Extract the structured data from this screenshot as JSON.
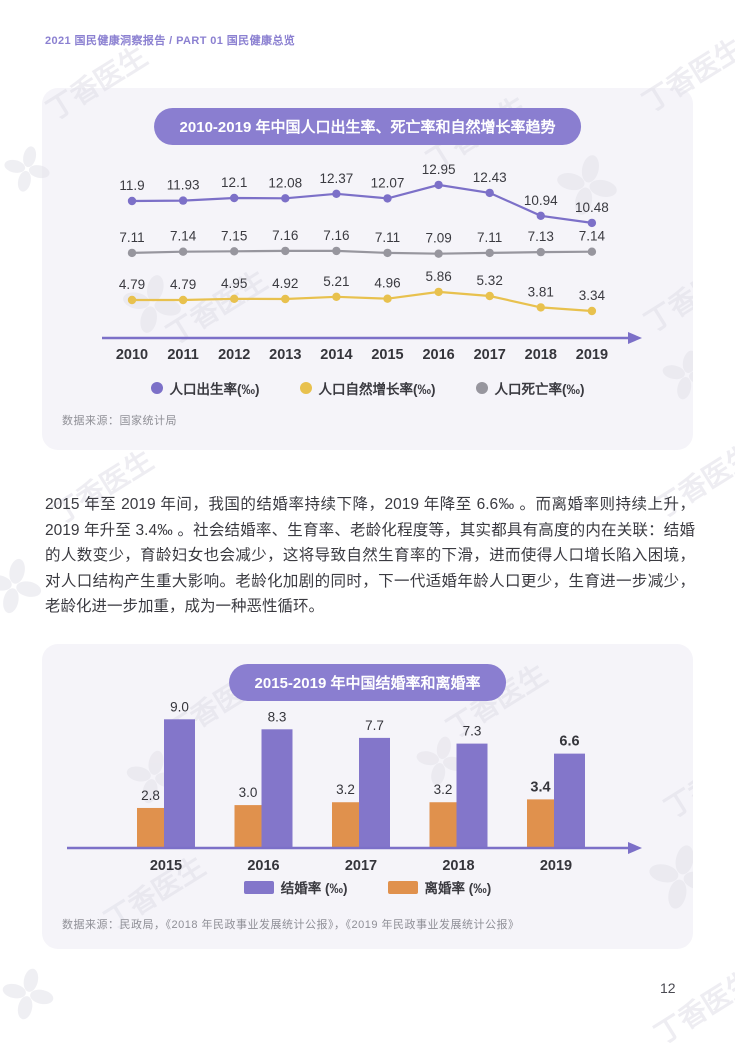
{
  "page": {
    "header": "2021 国民健康洞察报告 / PART 01 国民健康总览",
    "page_number": "12",
    "watermark_text": "丁香医生"
  },
  "colors": {
    "accent_purple": "#8A7ED0",
    "line_purple": "#7C70C8",
    "line_yellow": "#E8C14E",
    "line_gray": "#97969E",
    "bar_purple": "#8376CA",
    "bar_orange": "#E0914D",
    "card_bg": "#F5F4F9",
    "header_purple": "#8B80D1"
  },
  "paragraph": "2015 年至 2019 年间，我国的结婚率持续下降，2019 年降至 6.6‰ 。而离婚率则持续上升，2019 年升至 3.4‰ 。社会结婚率、生育率、老龄化程度等，其实都具有高度的内在关联：结婚的人数变少，育龄妇女也会减少，这将导致自然生育率的下滑，进而使得人口增长陷入困境，对人口结构产生重大影响。老龄化加剧的同时，下一代适婚年龄人口更少，生育进一步减少，老龄化进一步加重，成为一种恶性循环。",
  "chart_data": [
    {
      "type": "line",
      "title": "2010-2019 年中国人口出生率、死亡率和自然增长率趋势",
      "categories": [
        "2010",
        "2011",
        "2012",
        "2013",
        "2014",
        "2015",
        "2016",
        "2017",
        "2018",
        "2019"
      ],
      "series": [
        {
          "name": "人口出生率(‰)",
          "color": "#7C70C8",
          "values": [
            11.9,
            11.93,
            12.1,
            12.08,
            12.37,
            12.07,
            12.95,
            12.43,
            10.94,
            10.48
          ],
          "labels": [
            "11.9",
            "11.93",
            "12.1",
            "12.08",
            "12.37",
            "12.07",
            "12.95",
            "12.43",
            "10.94",
            "10.48"
          ]
        },
        {
          "name": "人口自然增长率(‰)",
          "color": "#E8C14E",
          "values": [
            4.79,
            4.79,
            4.95,
            4.92,
            5.21,
            4.96,
            5.86,
            5.32,
            3.81,
            3.34
          ],
          "labels": [
            "4.79",
            "4.79",
            "4.95",
            "4.92",
            "5.21",
            "4.96",
            "5.86",
            "5.32",
            "3.81",
            "3.34"
          ]
        },
        {
          "name": "人口死亡率(‰)",
          "color": "#97969E",
          "values": [
            7.11,
            7.14,
            7.15,
            7.16,
            7.16,
            7.11,
            7.09,
            7.11,
            7.13,
            7.14
          ],
          "labels": [
            "7.11",
            "7.14",
            "7.15",
            "7.16",
            "7.16",
            "7.11",
            "7.09",
            "7.11",
            "7.13",
            "7.14"
          ]
        }
      ],
      "legend": [
        "人口出生率(‰)",
        "人口自然增长率(‰)",
        "人口死亡率(‰)"
      ],
      "legend_position": "bottom",
      "grid": false,
      "source": "数据来源：国家统计局"
    },
    {
      "type": "bar",
      "title": "2015-2019 年中国结婚率和离婚率",
      "categories": [
        "2015",
        "2016",
        "2017",
        "2018",
        "2019"
      ],
      "series": [
        {
          "name": "结婚率 (‰)",
          "color": "#8376CA",
          "values": [
            9.0,
            8.3,
            7.7,
            7.3,
            6.6
          ],
          "labels": [
            "9.0",
            "8.3",
            "7.7",
            "7.3",
            "6.6"
          ]
        },
        {
          "name": "离婚率 (‰)",
          "color": "#E0914D",
          "values": [
            2.8,
            3.0,
            3.2,
            3.2,
            3.4
          ],
          "labels": [
            "2.8",
            "3.0",
            "3.2",
            "3.2",
            "3.4"
          ]
        }
      ],
      "legend": [
        "结婚率 (‰)",
        "离婚率 (‰)"
      ],
      "legend_position": "bottom",
      "grid": false,
      "highlight_category": "2019",
      "source": "数据来源：民政局，《2018 年民政事业发展统计公报》，《2019 年民政事业发展统计公报》"
    }
  ]
}
